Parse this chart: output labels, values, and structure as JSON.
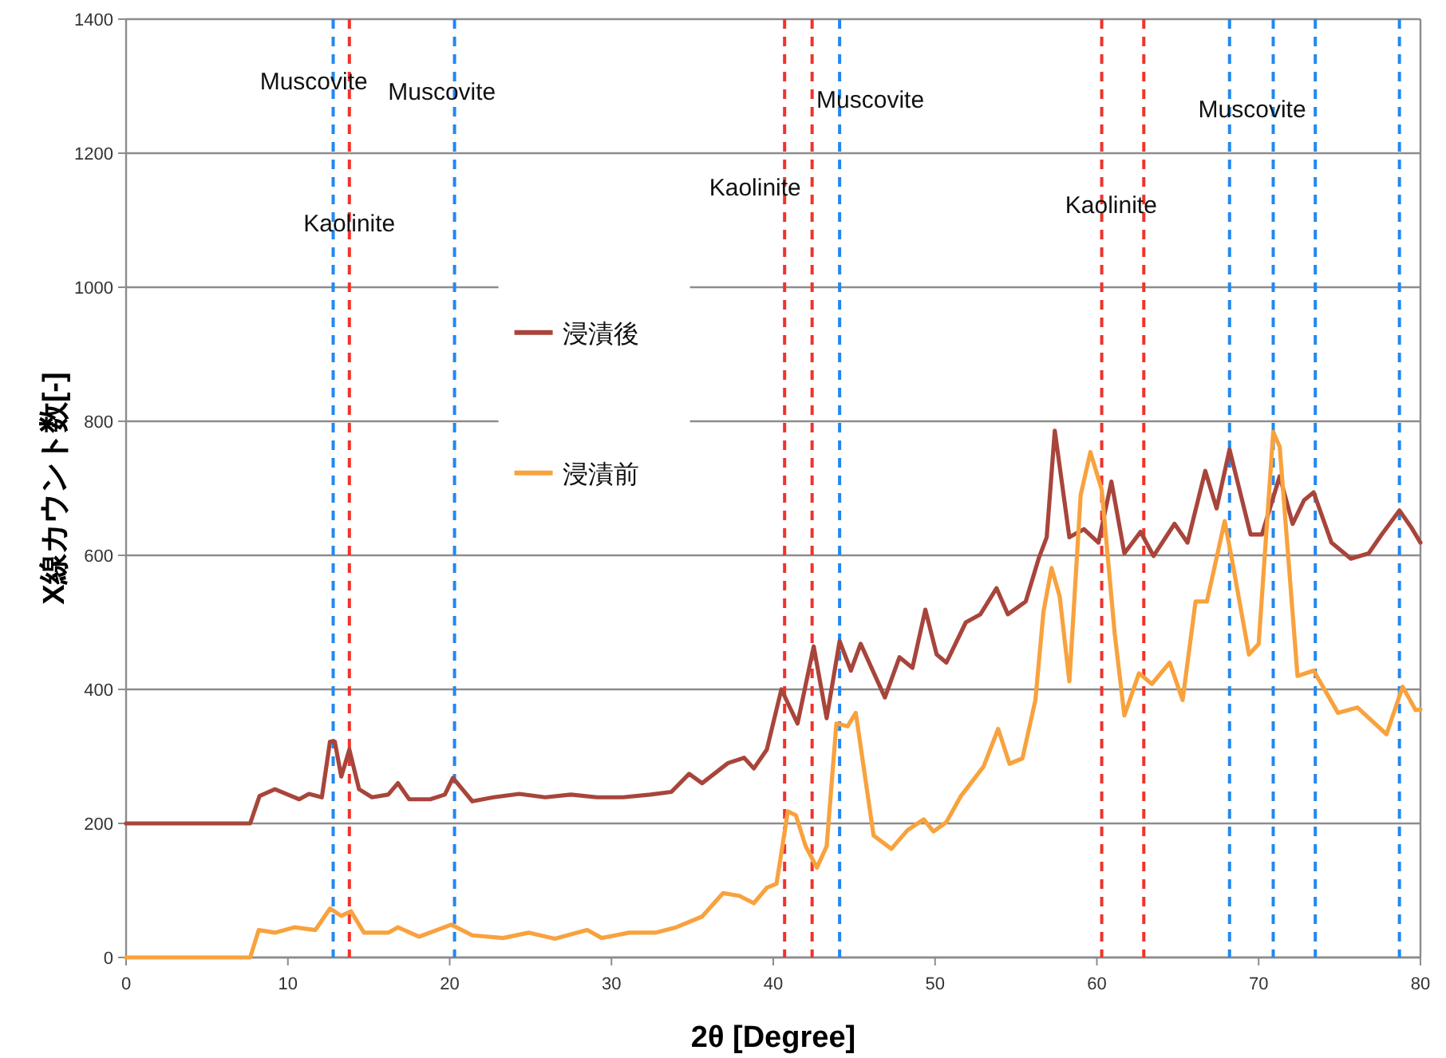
{
  "chart_data": {
    "type": "line",
    "xlabel": "2θ [Degree]",
    "ylabel": "X線カウント数[-]",
    "xlim": [
      0,
      80
    ],
    "xticks": [
      0,
      10,
      20,
      30,
      40,
      50,
      60,
      70,
      80
    ],
    "ylim": [
      0,
      1400
    ],
    "yticks": [
      0,
      200,
      400,
      600,
      800,
      1000,
      1200,
      1400
    ],
    "grid": "y",
    "legend": "left",
    "marker": "none",
    "line_style": "solid",
    "series": [
      {
        "name": "浸漬後",
        "color": "#a8453b",
        "x": [
          0,
          7.67,
          8.25,
          9.2,
          10.0,
          10.7,
          11.3,
          12.1,
          12.6,
          12.9,
          13.3,
          13.8,
          14.4,
          15.2,
          16.2,
          16.8,
          17.5,
          18.8,
          19.7,
          20.2,
          21.4,
          22.7,
          24.3,
          25.9,
          27.5,
          29.1,
          30.7,
          32.4,
          33.7,
          34.8,
          35.6,
          37.2,
          38.2,
          38.8,
          39.6,
          40.5,
          41.5,
          42.5,
          43.3,
          44.1,
          44.8,
          45.4,
          46.9,
          47.8,
          48.6,
          49.4,
          50.1,
          50.7,
          51.9,
          52.8,
          53.8,
          54.5,
          55.6,
          56.4,
          56.9,
          57.4,
          58.3,
          59.2,
          60.1,
          60.9,
          61.7,
          62.7,
          63.5,
          64.8,
          65.6,
          66.7,
          67.4,
          68.2,
          69.5,
          70.2,
          71.3,
          72.1,
          72.8,
          73.4,
          74.5,
          75.7,
          76.8,
          77.6,
          78.7,
          79.4,
          80
        ],
        "values": [
          200,
          200,
          241,
          251,
          243,
          236,
          244,
          239,
          322,
          322,
          270,
          310,
          251,
          239,
          243,
          260,
          236,
          236,
          243,
          268,
          233,
          239,
          244,
          239,
          243,
          239,
          239,
          243,
          247,
          274,
          260,
          290,
          298,
          282,
          310,
          400,
          349,
          464,
          357,
          472,
          428,
          468,
          388,
          448,
          432,
          519,
          452,
          440,
          500,
          512,
          551,
          512,
          531,
          595,
          627,
          786,
          627,
          639,
          619,
          710,
          603,
          635,
          599,
          647,
          619,
          726,
          670,
          758,
          631,
          631,
          718,
          647,
          682,
          694,
          619,
          595,
          603,
          631,
          667,
          643,
          619
        ]
      },
      {
        "name": "浸漬前",
        "color": "#f8a23e",
        "x": [
          0,
          7.67,
          8.2,
          9.2,
          10.4,
          11.7,
          12.6,
          13.3,
          13.9,
          14.7,
          16.2,
          16.8,
          18.1,
          20.1,
          21.4,
          23.3,
          24.9,
          26.5,
          28.5,
          29.4,
          31.1,
          32.7,
          34.0,
          35.6,
          36.9,
          37.9,
          38.8,
          39.6,
          40.2,
          40.9,
          41.4,
          42.0,
          42.7,
          43.3,
          43.9,
          44.6,
          45.1,
          46.2,
          47.3,
          48.3,
          49.3,
          49.9,
          50.7,
          51.6,
          53.0,
          53.9,
          54.6,
          55.4,
          56.2,
          56.7,
          57.2,
          57.7,
          58.3,
          59.0,
          59.6,
          60.3,
          61.1,
          61.7,
          62.6,
          63.4,
          64.5,
          65.3,
          66.1,
          66.8,
          67.9,
          68.4,
          69.4,
          70.0,
          70.9,
          71.3,
          72.4,
          73.4,
          74.9,
          76.1,
          77.9,
          78.9,
          79.7,
          80
        ],
        "values": [
          0,
          0,
          41,
          37,
          45,
          41,
          73,
          62,
          69,
          37,
          37,
          45,
          31,
          49,
          33,
          29,
          37,
          28,
          41,
          29,
          37,
          37,
          45,
          61,
          96,
          92,
          81,
          104,
          110,
          218,
          212,
          166,
          134,
          166,
          349,
          345,
          365,
          182,
          162,
          190,
          206,
          188,
          202,
          241,
          285,
          341,
          289,
          297,
          384,
          516,
          581,
          539,
          412,
          690,
          754,
          698,
          484,
          361,
          424,
          408,
          440,
          384,
          531,
          531,
          651,
          587,
          452,
          468,
          784,
          762,
          420,
          428,
          365,
          373,
          333,
          404,
          369,
          370
        ]
      }
    ],
    "ref_lines": [
      {
        "axis": "x",
        "value": 12.8,
        "color": "#2288f0",
        "line_style": "dashed"
      },
      {
        "axis": "x",
        "value": 13.8,
        "color": "#f0332b",
        "line_style": "dashed"
      },
      {
        "axis": "x",
        "value": 20.3,
        "color": "#2288f0",
        "line_style": "dashed"
      },
      {
        "axis": "x",
        "value": 40.7,
        "color": "#f0332b",
        "line_style": "dashed"
      },
      {
        "axis": "x",
        "value": 42.4,
        "color": "#f0332b",
        "line_style": "dashed"
      },
      {
        "axis": "x",
        "value": 44.1,
        "color": "#2288f0",
        "line_style": "dashed"
      },
      {
        "axis": "x",
        "value": 60.3,
        "color": "#f0332b",
        "line_style": "dashed"
      },
      {
        "axis": "x",
        "value": 62.9,
        "color": "#f0332b",
        "line_style": "dashed"
      },
      {
        "axis": "x",
        "value": 68.2,
        "color": "#2288f0",
        "line_style": "dashed"
      },
      {
        "axis": "x",
        "value": 70.9,
        "color": "#2288f0",
        "line_style": "dashed"
      },
      {
        "axis": "x",
        "value": 73.5,
        "color": "#2288f0",
        "line_style": "dashed"
      },
      {
        "axis": "x",
        "value": 78.7,
        "color": "#2288f0",
        "line_style": "dashed"
      }
    ],
    "annotations": [
      "Muscovite",
      "Muscovite",
      "Muscovite",
      "Muscovite",
      "Kaolinite",
      "Kaolinite",
      "Kaolinite"
    ]
  }
}
